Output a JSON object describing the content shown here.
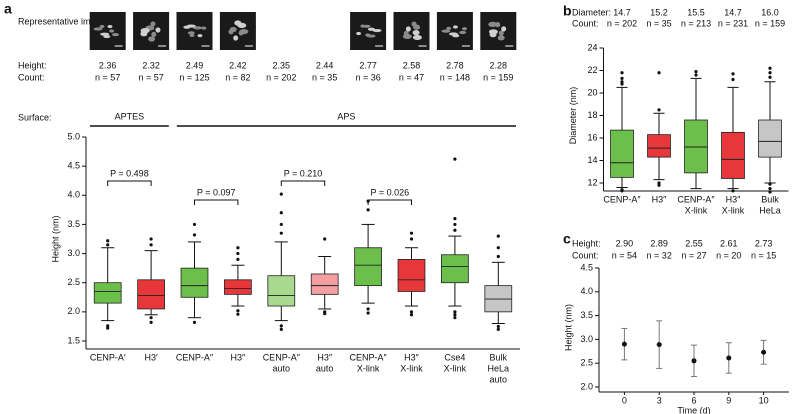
{
  "chart_data": [
    {
      "panel": "a",
      "type": "box",
      "images_label": "Representative images:",
      "header_rows": [
        {
          "label": "Height:",
          "values": [
            2.36,
            2.32,
            2.49,
            2.42,
            2.35,
            2.44,
            2.77,
            2.58,
            2.78,
            2.28
          ]
        },
        {
          "label": "Count:",
          "values": [
            "n = 57",
            "n = 57",
            "n = 125",
            "n = 82",
            "n = 202",
            "n = 35",
            "n = 36",
            "n = 47",
            "n = 148",
            "n = 159"
          ]
        }
      ],
      "surface_label": "Surface:",
      "surface_groups": [
        "APTES",
        "APS"
      ],
      "comparisons": [
        "P = 0.498",
        "P = 0.097",
        "P = 0.210",
        "P = 0.026"
      ],
      "categories": [
        [
          "CENP-A′"
        ],
        [
          "H3′"
        ],
        [
          "CENP-A″"
        ],
        [
          "H3″"
        ],
        [
          "CENP-A″",
          "auto"
        ],
        [
          "H3″",
          "auto"
        ],
        [
          "CENP-A″",
          "X-link"
        ],
        [
          "H3″",
          "X-link"
        ],
        [
          "Cse4",
          "X-link"
        ],
        [
          "Bulk",
          "HeLa",
          "auto"
        ]
      ],
      "boxes": [
        {
          "color": "#6cbf4b",
          "min": 1.85,
          "q1": 2.15,
          "median": 2.35,
          "q3": 2.5,
          "max": 3.1,
          "outliers": [
            3.22,
            3.15,
            1.76,
            1.72
          ]
        },
        {
          "color": "#e8373a",
          "min": 1.95,
          "q1": 2.05,
          "median": 2.28,
          "q3": 2.55,
          "max": 3.05,
          "outliers": [
            3.25,
            3.15,
            1.9,
            1.82
          ]
        },
        {
          "color": "#6cbf4b",
          "min": 1.9,
          "q1": 2.25,
          "median": 2.45,
          "q3": 2.75,
          "max": 3.2,
          "outliers": [
            3.5,
            3.32,
            1.82
          ]
        },
        {
          "color": "#e8373a",
          "min": 2.1,
          "q1": 2.3,
          "median": 2.4,
          "q3": 2.55,
          "max": 2.8,
          "outliers": [
            3.1,
            3.0,
            2.9,
            2.02,
            1.96
          ]
        },
        {
          "color": "#a8d98e",
          "min": 1.85,
          "q1": 2.1,
          "median": 2.28,
          "q3": 2.62,
          "max": 3.2,
          "outliers": [
            4.02,
            3.7,
            3.5,
            3.35,
            1.76,
            1.7
          ]
        },
        {
          "color": "#f4a0a3",
          "min": 2.05,
          "q1": 2.3,
          "median": 2.45,
          "q3": 2.65,
          "max": 2.95,
          "outliers": [
            3.25,
            2.0,
            1.97
          ]
        },
        {
          "color": "#6cbf4b",
          "min": 2.15,
          "q1": 2.45,
          "median": 2.8,
          "q3": 3.1,
          "max": 3.5,
          "outliers": [
            3.9,
            3.75,
            2.05,
            1.98
          ]
        },
        {
          "color": "#e8373a",
          "min": 2.1,
          "q1": 2.35,
          "median": 2.55,
          "q3": 2.9,
          "max": 3.1,
          "outliers": [
            3.35,
            3.25,
            2.0,
            1.95
          ]
        },
        {
          "color": "#6cbf4b",
          "min": 2.1,
          "q1": 2.5,
          "median": 2.78,
          "q3": 2.98,
          "max": 3.3,
          "outliers": [
            4.62,
            3.6,
            3.5,
            3.4,
            2.0,
            1.95,
            1.9
          ]
        },
        {
          "color": "#c6c6c6",
          "min": 1.8,
          "q1": 2.0,
          "median": 2.22,
          "q3": 2.45,
          "max": 2.85,
          "outliers": [
            3.3,
            3.1,
            2.95,
            1.75,
            1.7
          ]
        }
      ],
      "ylabel": "Height (nm)",
      "ylim": [
        1.5,
        5
      ],
      "yticks": [
        1.5,
        {
          "value": 2,
          "label": "2.0"
        },
        2.5,
        {
          "value": 3,
          "label": "3.0"
        },
        3.5,
        {
          "value": 4,
          "label": "4.0"
        },
        4.5,
        {
          "value": 5,
          "label": "5.0"
        }
      ]
    },
    {
      "panel": "b",
      "type": "box",
      "header_rows": [
        {
          "label": "Diameter:",
          "values": [
            "14.7",
            "15.2",
            "15.5",
            "14.7",
            "16.0"
          ]
        },
        {
          "label": "Count:",
          "values": [
            "n = 202",
            "n = 35",
            "n = 213",
            "n = 231",
            "n = 159"
          ]
        }
      ],
      "categories": [
        [
          "CENP-A″"
        ],
        [
          "H3″"
        ],
        [
          "CENP-A″",
          "X-link"
        ],
        [
          "H3″",
          "X-link"
        ],
        [
          "Bulk",
          "HeLa"
        ]
      ],
      "boxes": [
        {
          "color": "#6cbf4b",
          "min": 11.6,
          "q1": 12.5,
          "median": 13.8,
          "q3": 16.7,
          "max": 20.5,
          "outliers": [
            21.8,
            21.3,
            21.0,
            20.8,
            11.4,
            11.3
          ]
        },
        {
          "color": "#e8373a",
          "min": 12.3,
          "q1": 14.3,
          "median": 15.1,
          "q3": 16.3,
          "max": 18.2,
          "outliers": [
            21.8,
            18.5,
            12.0,
            11.8
          ]
        },
        {
          "color": "#6cbf4b",
          "min": 11.5,
          "q1": 12.9,
          "median": 15.2,
          "q3": 17.6,
          "max": 21.3,
          "outliers": [
            21.9,
            21.6
          ]
        },
        {
          "color": "#e8373a",
          "min": 11.5,
          "q1": 12.4,
          "median": 14.1,
          "q3": 16.5,
          "max": 20.5,
          "outliers": [
            21.7,
            21.2,
            11.3
          ]
        },
        {
          "color": "#c6c6c6",
          "min": 12.0,
          "q1": 14.3,
          "median": 15.7,
          "q3": 17.6,
          "max": 21.0,
          "outliers": [
            22.2,
            21.8,
            21.4,
            11.9,
            11.5,
            11.2
          ]
        }
      ],
      "ylabel": "Diameter (nm)",
      "ylim": [
        12,
        24
      ],
      "yticks": [
        12,
        14,
        16,
        18,
        20,
        22,
        24
      ]
    },
    {
      "panel": "c",
      "type": "errorbar",
      "header_rows": [
        {
          "label": "Height:"
        },
        {
          "label": "Count:",
          "values": [
            "n = 54",
            "n = 32",
            "n = 27",
            "n = 20",
            "n = 15"
          ]
        }
      ],
      "categories": [
        [
          "0"
        ],
        [
          "3"
        ],
        [
          "6"
        ],
        [
          "9"
        ],
        [
          "10"
        ]
      ],
      "xlabel": "Time (d)",
      "values": [
        2.9,
        2.89,
        2.55,
        2.61,
        2.73
      ],
      "value_labels": [
        "2.90",
        "2.89",
        "2.55",
        "2.61",
        "2.73"
      ],
      "errors": [
        0.33,
        0.5,
        0.33,
        0.32,
        0.25
      ],
      "color": "#111111",
      "ylabel": "Height (nm)",
      "ylim": [
        2,
        4.5
      ],
      "yticks": [
        {
          "value": 2,
          "label": "2.0"
        },
        2.5,
        {
          "value": 3,
          "label": "3.0"
        },
        3.5,
        {
          "value": 4,
          "label": "4.0"
        },
        4.5
      ]
    }
  ]
}
